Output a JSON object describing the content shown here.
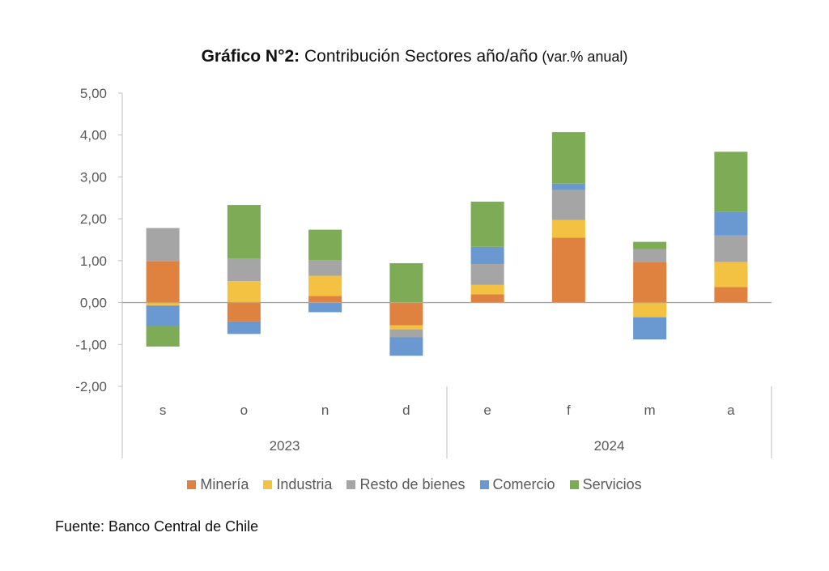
{
  "title": {
    "bold_part": "Gráfico N°2:",
    "main_part": " Contribución Sectores año/año",
    "sub_part": " (var.% anual)"
  },
  "source": "Fuente: Banco Central de Chile",
  "chart_data": {
    "type": "bar",
    "stacked": true,
    "title": "Gráfico N°2: Contribución Sectores año/año (var.% anual)",
    "xlabel": "",
    "ylabel": "",
    "ylim": [
      -2,
      5
    ],
    "yticks": [
      5,
      4,
      3,
      2,
      1,
      0,
      -1,
      -2
    ],
    "ytick_labels": [
      "5,00",
      "4,00",
      "3,00",
      "2,00",
      "1,00",
      "0,00",
      "-1,00",
      "-2,00"
    ],
    "categories": [
      "s",
      "o",
      "n",
      "d",
      "e",
      "f",
      "m",
      "a"
    ],
    "groups": [
      {
        "label": "2023",
        "categories": [
          "s",
          "o",
          "n",
          "d"
        ]
      },
      {
        "label": "2024",
        "categories": [
          "e",
          "f",
          "m",
          "a"
        ]
      }
    ],
    "legend_position": "bottom",
    "grid": false,
    "series": [
      {
        "name": "Minería",
        "color": "#E0823F",
        "values": [
          0.99,
          -0.45,
          0.16,
          -0.54,
          0.2,
          1.55,
          0.97,
          0.37
        ]
      },
      {
        "name": "Industria",
        "color": "#F4C242",
        "values": [
          -0.07,
          0.51,
          0.48,
          -0.1,
          0.22,
          0.42,
          -0.35,
          0.6
        ]
      },
      {
        "name": "Resto de bienes",
        "color": "#A5A5A5",
        "values": [
          0.79,
          0.54,
          0.37,
          -0.19,
          0.5,
          0.72,
          0.3,
          0.63
        ]
      },
      {
        "name": "Comercio",
        "color": "#6A98D0",
        "values": [
          -0.49,
          -0.3,
          -0.23,
          -0.44,
          0.41,
          0.15,
          -0.53,
          0.56
        ]
      },
      {
        "name": "Servicios",
        "color": "#7EAB55",
        "values": [
          -0.49,
          1.28,
          0.73,
          0.94,
          1.08,
          1.23,
          0.18,
          1.44
        ]
      }
    ]
  }
}
